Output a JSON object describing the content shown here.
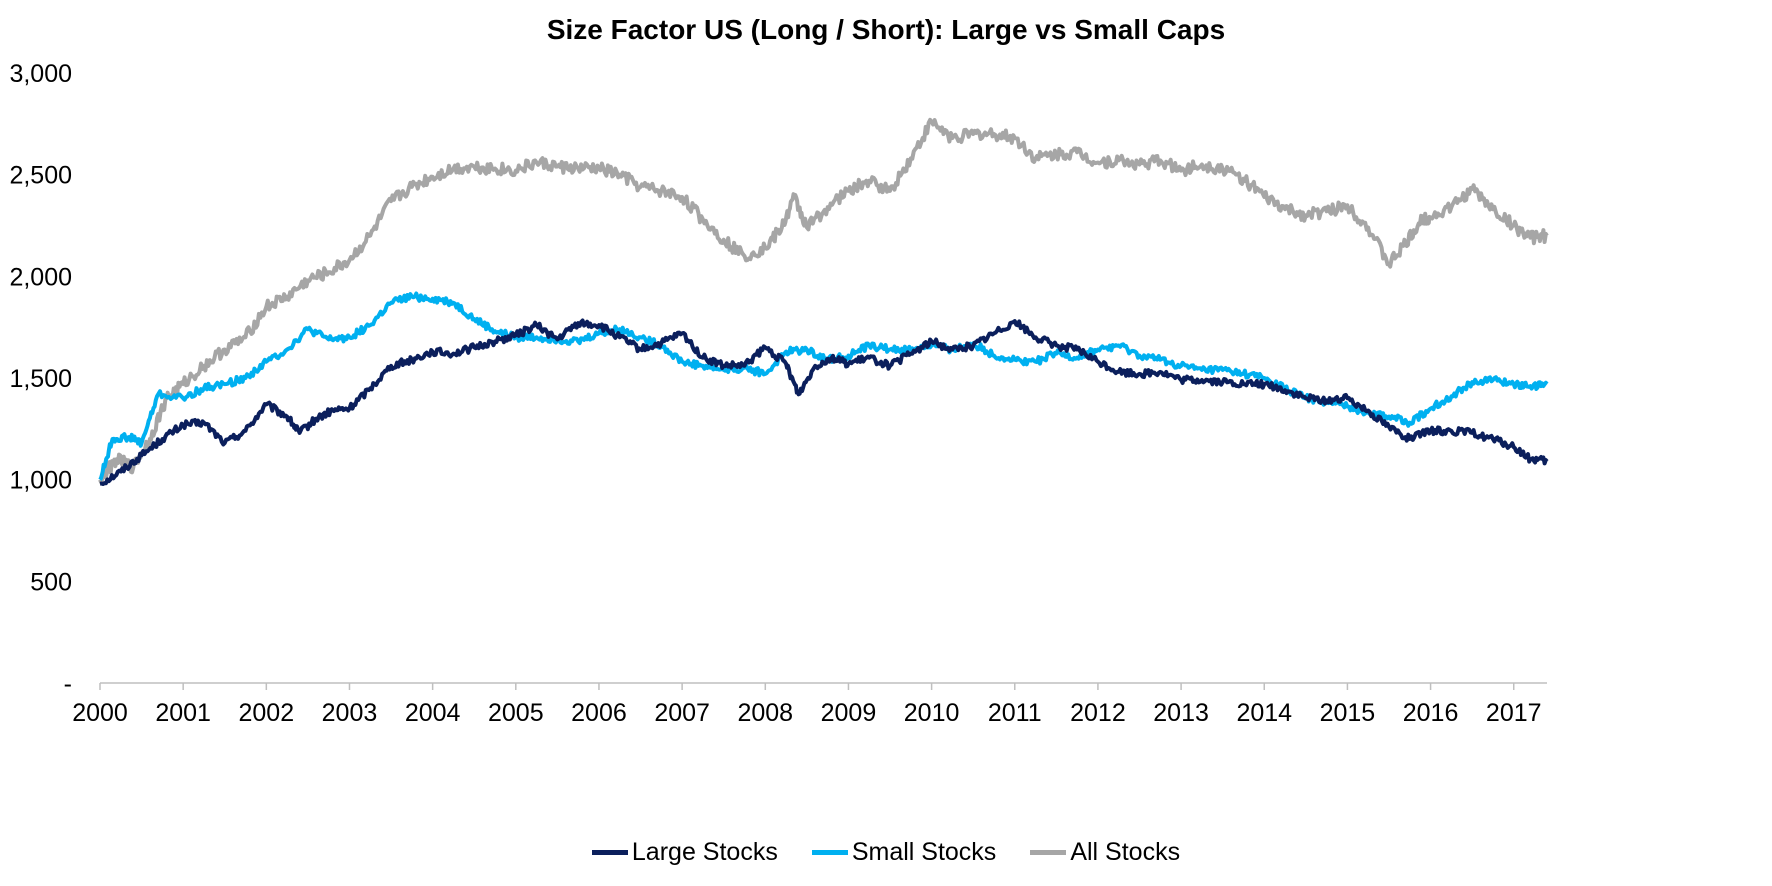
{
  "chart_data": {
    "type": "line",
    "title": "Size Factor US (Long / Short): Large vs Small Caps",
    "xlabel": "",
    "ylabel": "",
    "xlim": [
      2000,
      2017.4
    ],
    "ylim": [
      0,
      3000
    ],
    "y_ticks": [
      0,
      500,
      1000,
      1500,
      2000,
      2500,
      3000
    ],
    "y_tick_labels": [
      "-",
      "500",
      "1,000",
      "1,500",
      "2,000",
      "2,500",
      "3,000"
    ],
    "x_ticks": [
      2000,
      2001,
      2002,
      2003,
      2004,
      2005,
      2006,
      2007,
      2008,
      2009,
      2010,
      2011,
      2012,
      2013,
      2014,
      2015,
      2016,
      2017
    ],
    "x_tick_labels": [
      "2000",
      "2001",
      "2002",
      "2003",
      "2004",
      "2005",
      "2006",
      "2007",
      "2008",
      "2009",
      "2010",
      "2011",
      "2012",
      "2013",
      "2014",
      "2015",
      "2016",
      "2017"
    ],
    "grid": false,
    "legend_position": "bottom",
    "series": [
      {
        "name": "Large Stocks",
        "color": "#0b1f5c",
        "x": [
          2000,
          2000.25,
          2000.5,
          2000.75,
          2001,
          2001.25,
          2001.5,
          2001.75,
          2002,
          2002.25,
          2002.4,
          2002.6,
          2002.8,
          2003,
          2003.25,
          2003.5,
          2003.75,
          2004,
          2004.25,
          2004.5,
          2004.75,
          2005,
          2005.25,
          2005.5,
          2005.75,
          2006,
          2006.25,
          2006.5,
          2006.75,
          2007,
          2007.25,
          2007.5,
          2007.75,
          2008,
          2008.25,
          2008.4,
          2008.6,
          2008.8,
          2009,
          2009.25,
          2009.5,
          2009.75,
          2010,
          2010.25,
          2010.5,
          2010.75,
          2011,
          2011.25,
          2011.5,
          2011.75,
          2012,
          2012.25,
          2012.5,
          2012.75,
          2013,
          2013.25,
          2013.5,
          2013.75,
          2014,
          2014.25,
          2014.5,
          2014.75,
          2015,
          2015.25,
          2015.5,
          2015.75,
          2016,
          2016.25,
          2016.5,
          2016.75,
          2017,
          2017.2,
          2017.4
        ],
        "y": [
          980,
          1040,
          1120,
          1200,
          1270,
          1280,
          1180,
          1240,
          1370,
          1310,
          1230,
          1300,
          1340,
          1350,
          1450,
          1560,
          1590,
          1630,
          1620,
          1650,
          1680,
          1710,
          1760,
          1690,
          1770,
          1760,
          1700,
          1640,
          1670,
          1720,
          1600,
          1560,
          1560,
          1650,
          1570,
          1420,
          1560,
          1600,
          1570,
          1600,
          1560,
          1620,
          1680,
          1640,
          1660,
          1720,
          1780,
          1700,
          1660,
          1640,
          1580,
          1530,
          1520,
          1530,
          1490,
          1490,
          1480,
          1470,
          1470,
          1440,
          1400,
          1390,
          1400,
          1340,
          1260,
          1200,
          1240,
          1240,
          1230,
          1200,
          1160,
          1100,
          1090
        ]
      },
      {
        "name": "Small Stocks",
        "color": "#00b0f0",
        "x": [
          2000,
          2000.15,
          2000.35,
          2000.5,
          2000.7,
          2001,
          2001.25,
          2001.5,
          2001.75,
          2002,
          2002.25,
          2002.5,
          2002.75,
          2003,
          2003.25,
          2003.5,
          2003.75,
          2004,
          2004.25,
          2004.5,
          2004.75,
          2005,
          2005.25,
          2005.5,
          2005.75,
          2006,
          2006.25,
          2006.5,
          2006.75,
          2007,
          2007.25,
          2007.5,
          2007.75,
          2008,
          2008.25,
          2008.5,
          2008.75,
          2009,
          2009.25,
          2009.5,
          2009.75,
          2010,
          2010.25,
          2010.5,
          2010.75,
          2011,
          2011.25,
          2011.5,
          2011.75,
          2012,
          2012.25,
          2012.5,
          2012.75,
          2013,
          2013.25,
          2013.5,
          2013.75,
          2014,
          2014.25,
          2014.5,
          2014.75,
          2015,
          2015.25,
          2015.5,
          2015.75,
          2016,
          2016.25,
          2016.5,
          2016.75,
          2017,
          2017.2,
          2017.4
        ],
        "y": [
          1000,
          1200,
          1210,
          1180,
          1420,
          1400,
          1450,
          1470,
          1500,
          1580,
          1640,
          1740,
          1690,
          1700,
          1760,
          1870,
          1900,
          1890,
          1870,
          1790,
          1730,
          1700,
          1700,
          1690,
          1680,
          1720,
          1740,
          1700,
          1660,
          1580,
          1560,
          1540,
          1550,
          1520,
          1630,
          1640,
          1590,
          1610,
          1660,
          1640,
          1640,
          1660,
          1640,
          1670,
          1610,
          1590,
          1580,
          1620,
          1600,
          1640,
          1660,
          1610,
          1590,
          1560,
          1540,
          1540,
          1520,
          1500,
          1450,
          1400,
          1380,
          1360,
          1330,
          1310,
          1280,
          1350,
          1410,
          1480,
          1490,
          1470,
          1460,
          1470
        ]
      },
      {
        "name": "All Stocks",
        "color": "#a6a6a6",
        "x": [
          2000,
          2000.2,
          2000.4,
          2000.6,
          2000.8,
          2001,
          2001.25,
          2001.5,
          2001.75,
          2002,
          2002.25,
          2002.5,
          2002.75,
          2003,
          2003.25,
          2003.5,
          2003.75,
          2004,
          2004.25,
          2004.5,
          2004.75,
          2005,
          2005.25,
          2005.5,
          2005.75,
          2006,
          2006.25,
          2006.5,
          2006.75,
          2007,
          2007.25,
          2007.5,
          2007.75,
          2008,
          2008.2,
          2008.35,
          2008.5,
          2008.75,
          2009,
          2009.25,
          2009.5,
          2009.75,
          2010,
          2010.25,
          2010.5,
          2010.75,
          2011,
          2011.25,
          2011.5,
          2011.75,
          2012,
          2012.25,
          2012.5,
          2012.75,
          2013,
          2013.25,
          2013.5,
          2013.75,
          2014,
          2014.25,
          2014.5,
          2014.75,
          2015,
          2015.25,
          2015.5,
          2015.7,
          2015.9,
          2016,
          2016.25,
          2016.5,
          2016.75,
          2017,
          2017.2,
          2017.4
        ],
        "y": [
          1000,
          1100,
          1060,
          1200,
          1400,
          1470,
          1560,
          1640,
          1700,
          1850,
          1900,
          1980,
          2020,
          2080,
          2200,
          2370,
          2440,
          2490,
          2530,
          2540,
          2530,
          2520,
          2560,
          2540,
          2530,
          2530,
          2500,
          2440,
          2420,
          2390,
          2280,
          2180,
          2100,
          2140,
          2240,
          2390,
          2240,
          2340,
          2420,
          2470,
          2420,
          2580,
          2760,
          2680,
          2700,
          2700,
          2680,
          2580,
          2600,
          2610,
          2560,
          2570,
          2550,
          2570,
          2520,
          2550,
          2530,
          2480,
          2390,
          2330,
          2300,
          2320,
          2350,
          2240,
          2060,
          2160,
          2280,
          2290,
          2340,
          2430,
          2330,
          2250,
          2190,
          2200
        ]
      }
    ]
  }
}
